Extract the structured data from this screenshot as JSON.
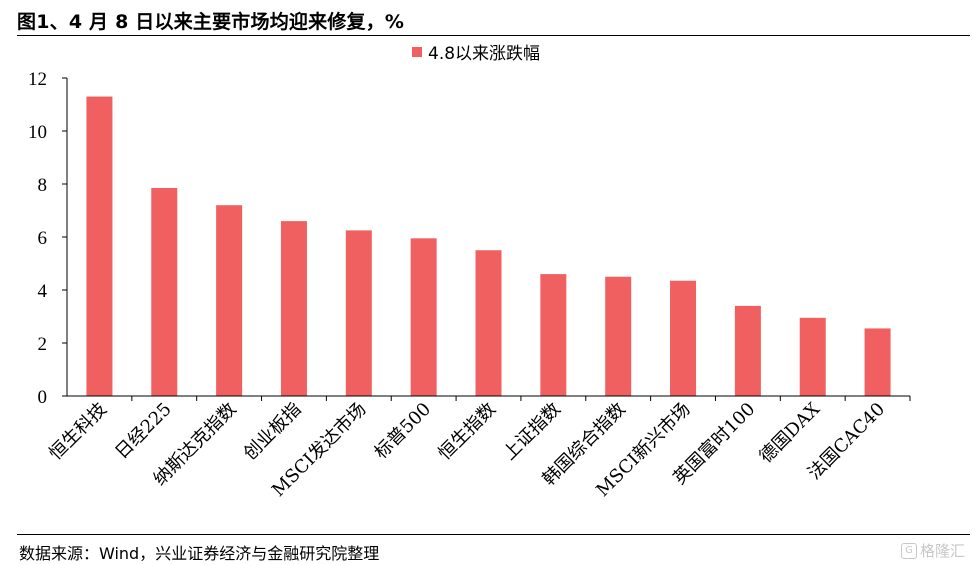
{
  "header": {
    "title": "图1、4 月 8 日以来主要市场均迎来修复，%"
  },
  "footer": {
    "source": "数据来源：Wind，兴业证券经济与金融研究院整理",
    "watermark": "格隆汇"
  },
  "colors": {
    "bar": "#f06060",
    "axis": "#000000"
  },
  "chart_data": {
    "type": "bar",
    "title": "",
    "xlabel": "",
    "ylabel": "",
    "ylim": [
      0,
      12
    ],
    "yticks": [
      0,
      2,
      4,
      6,
      8,
      10,
      12
    ],
    "legend": {
      "position": "top-center"
    },
    "grid": false,
    "categories": [
      "恒生科技",
      "日经225",
      "纳斯达克指数",
      "创业板指",
      "MSCI发达市场",
      "标普500",
      "恒生指数",
      "上证指数",
      "韩国综合指数",
      "MSCI新兴市场",
      "英国富时100",
      "德国DAX",
      "法国CAC40"
    ],
    "series": [
      {
        "name": "4.8以来涨跌幅",
        "values": [
          11.3,
          7.85,
          7.2,
          6.6,
          6.25,
          5.95,
          5.5,
          4.6,
          4.5,
          4.35,
          3.4,
          2.95,
          2.55
        ]
      }
    ]
  }
}
